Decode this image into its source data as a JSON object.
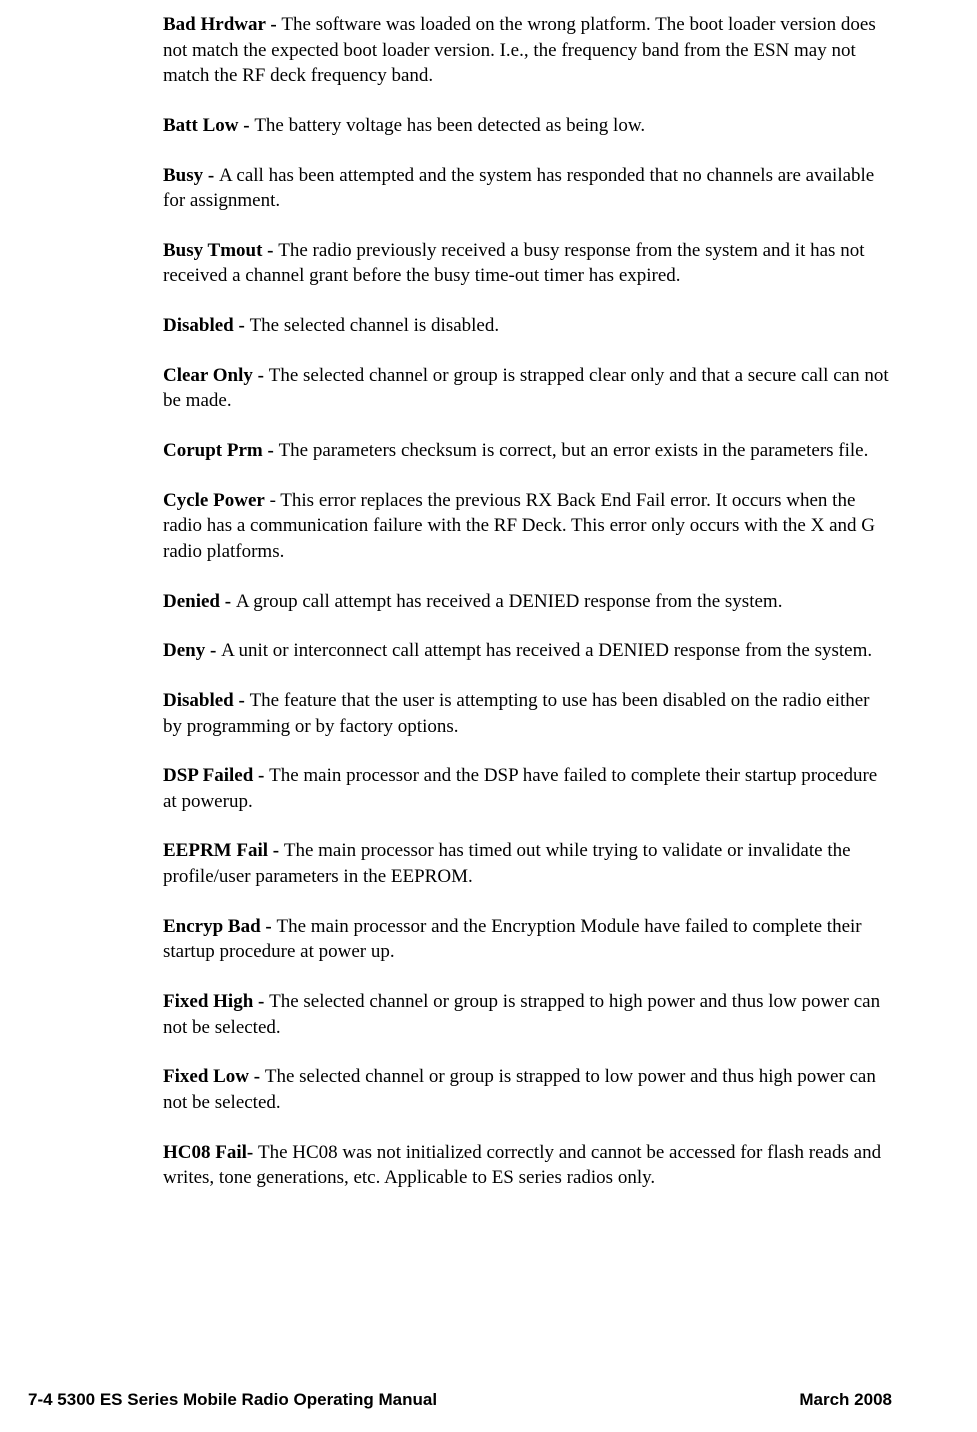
{
  "entries": [
    {
      "term": "Bad Hrdwar - ",
      "desc": "The software was loaded on the wrong platform. The boot loader version does not match the expected boot loader version. I.e., the frequency band from the ESN may not match the RF deck frequency band."
    },
    {
      "term": "Batt Low - ",
      "desc": "The battery voltage has been detected as being low."
    },
    {
      "term": "Busy - ",
      "desc": "A call has been attempted and the system has responded that no channels are available for assignment."
    },
    {
      "term": "Busy Tmout - ",
      "desc": "The radio previously received a busy response from the system and it has not received a channel grant before the busy time-out timer has expired."
    },
    {
      "term": "Disabled - ",
      "desc": "The selected channel is disabled."
    },
    {
      "term": "Clear Only - ",
      "desc": "The selected channel or group is strapped clear only and that a secure call can not be made."
    },
    {
      "term": "Corupt Prm - ",
      "desc": "The parameters checksum is correct, but an error exists in the parameters file."
    },
    {
      "term": "Cycle Power",
      "desc": " - This error replaces the previous RX Back End Fail error. It occurs when the radio has a communication failure with the RF Deck. This error only occurs with the X and G radio platforms."
    },
    {
      "term": "Denied - ",
      "desc": "A group call attempt has received a DENIED response from the system."
    },
    {
      "term": "Deny - ",
      "desc": "A unit or interconnect call attempt has received a DENIED response from the system."
    },
    {
      "term": "Disabled - ",
      "desc": "The feature that the user is attempting to use has been disabled on the radio either by programming or by factory options."
    },
    {
      "term": "DSP Failed - ",
      "desc": "The main processor and the DSP have failed to complete their startup procedure at powerup."
    },
    {
      "term": "EEPRM Fail - ",
      "desc": "The main processor has timed out while trying to validate or invalidate the profile/user parameters in the EEPROM."
    },
    {
      "term": "Encryp Bad - ",
      "desc": "The main processor and the Encryption Module have failed to complete their startup procedure at power up."
    },
    {
      "term": "Fixed High - ",
      "desc": "The selected channel or group is strapped to high power and thus low power can not be selected."
    },
    {
      "term": "Fixed Low - ",
      "desc": "The selected channel or group is strapped to low power and thus high power can not be selected."
    },
    {
      "term": "HC08 Fail- ",
      "desc": "The HC08 was not initialized correctly and cannot be accessed for flash reads and writes, tone generations, etc. Applicable to ES series radios only."
    }
  ],
  "footer": {
    "left": "7-4    5300 ES Series Mobile Radio Operating Manual",
    "right": "March 2008"
  }
}
